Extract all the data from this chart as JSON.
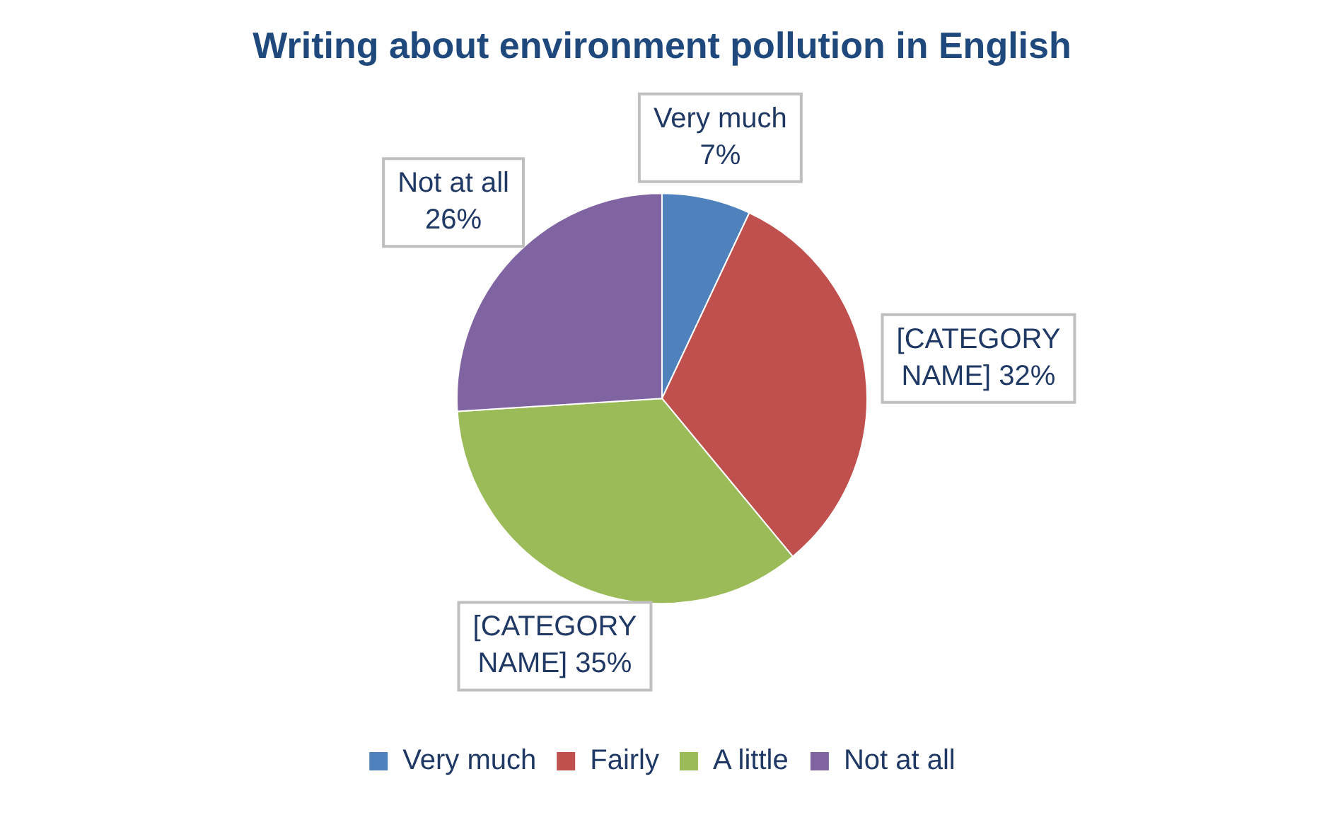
{
  "chart_data": {
    "type": "pie",
    "title": "Writing about environment pollution in English",
    "categories": [
      "Very much",
      "Fairly",
      "A little",
      "Not at all"
    ],
    "values": [
      7,
      32,
      35,
      26
    ],
    "colors": [
      "#4f81bd",
      "#c0504d",
      "#9bbb59",
      "#8064a2"
    ],
    "value_labels": [
      "Very much 7%",
      "[CATEGORY NAME] 32%",
      "[CATEGORY NAME] 35%",
      "Not at all 26%"
    ],
    "legend": "bottom"
  }
}
